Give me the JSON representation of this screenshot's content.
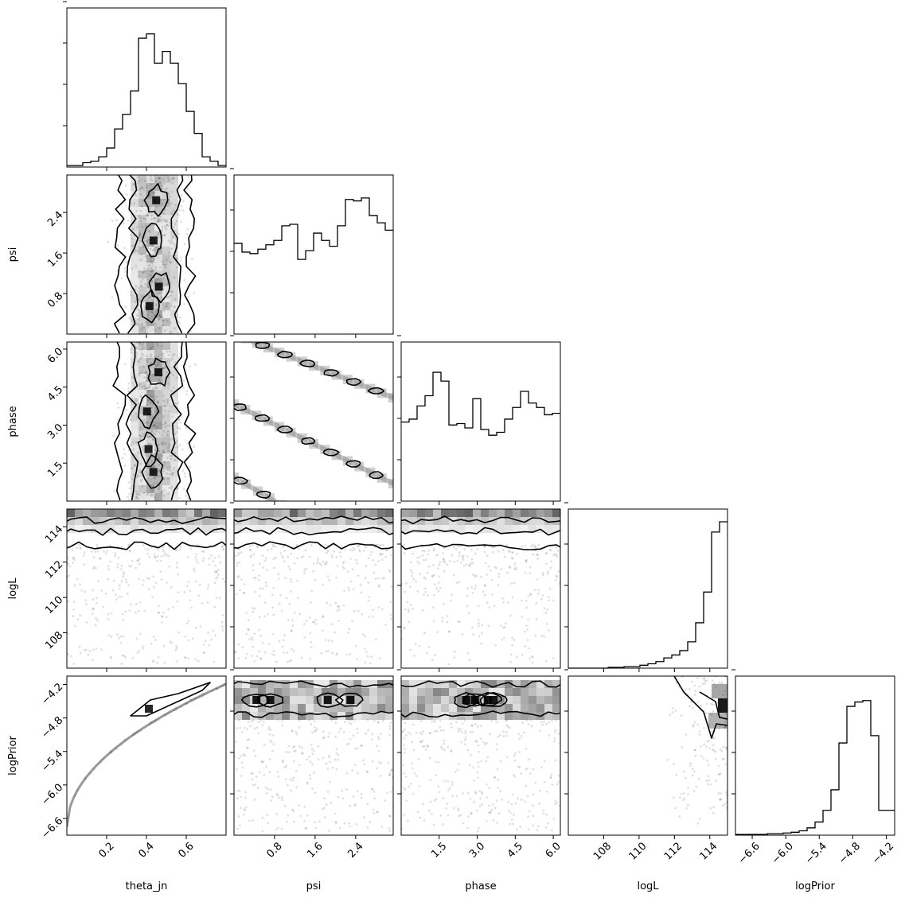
{
  "chart_data": {
    "type": "corner",
    "parameters": [
      {
        "name": "theta_jn",
        "range": [
          0.0,
          0.8
        ],
        "ticks": [
          0.2,
          0.4,
          0.6
        ],
        "tick_labels": [
          "0.2",
          "0.4",
          "0.6"
        ]
      },
      {
        "name": "psi",
        "range": [
          0.0,
          3.14
        ],
        "ticks": [
          0.8,
          1.6,
          2.4
        ],
        "tick_labels": [
          "0.8",
          "1.6",
          "2.4"
        ]
      },
      {
        "name": "phase",
        "range": [
          0.0,
          6.28
        ],
        "ticks": [
          1.5,
          3.0,
          4.5,
          6.0
        ],
        "tick_labels": [
          "1.5",
          "3.0",
          "4.5",
          "6.0"
        ]
      },
      {
        "name": "logL",
        "range": [
          106.0,
          115.0
        ],
        "ticks": [
          108,
          110,
          112,
          114
        ],
        "tick_labels": [
          "108",
          "110",
          "112",
          "114"
        ]
      },
      {
        "name": "logPrior",
        "range": [
          -6.9,
          -4.05
        ],
        "ticks": [
          -6.6,
          -6.0,
          -5.4,
          -4.8,
          -4.2
        ],
        "tick_labels": [
          "−6.6",
          "−6.0",
          "−5.4",
          "−4.8",
          "−4.2"
        ]
      }
    ],
    "histograms": [
      [
        0.01,
        0.01,
        0.03,
        0.04,
        0.07,
        0.13,
        0.26,
        0.36,
        0.52,
        0.88,
        0.91,
        0.71,
        0.79,
        0.71,
        0.57,
        0.38,
        0.23,
        0.07,
        0.04,
        0.01
      ],
      [
        0.62,
        0.56,
        0.55,
        0.58,
        0.61,
        0.64,
        0.74,
        0.75,
        0.51,
        0.57,
        0.69,
        0.64,
        0.6,
        0.74,
        0.92,
        0.91,
        0.93,
        0.81,
        0.76,
        0.71
      ],
      [
        0.54,
        0.56,
        0.65,
        0.72,
        0.88,
        0.82,
        0.52,
        0.53,
        0.5,
        0.7,
        0.49,
        0.45,
        0.47,
        0.56,
        0.64,
        0.75,
        0.67,
        0.64,
        0.59,
        0.6
      ],
      [
        0.0,
        0.0,
        0.0,
        0.0,
        0.0,
        0.005,
        0.005,
        0.01,
        0.01,
        0.02,
        0.03,
        0.045,
        0.07,
        0.09,
        0.12,
        0.18,
        0.31,
        0.52,
        0.93,
        1.0
      ],
      [
        0.005,
        0.005,
        0.005,
        0.005,
        0.01,
        0.01,
        0.015,
        0.02,
        0.03,
        0.05,
        0.09,
        0.17,
        0.31,
        0.63,
        0.88,
        0.91,
        0.92,
        0.68,
        0.17,
        0.17
      ]
    ],
    "pairs": [
      {
        "x": "theta_jn",
        "y": "psi",
        "kind": "band",
        "center": 0.44,
        "width": 0.12
      },
      {
        "x": "theta_jn",
        "y": "phase",
        "kind": "band",
        "center": 0.44,
        "width": 0.12
      },
      {
        "x": "psi",
        "y": "phase",
        "kind": "diagonal"
      },
      {
        "x": "theta_jn",
        "y": "logL",
        "kind": "top-band"
      },
      {
        "x": "psi",
        "y": "logL",
        "kind": "top-band"
      },
      {
        "x": "phase",
        "y": "logL",
        "kind": "top-band"
      },
      {
        "x": "theta_jn",
        "y": "logPrior",
        "kind": "curve"
      },
      {
        "x": "psi",
        "y": "logPrior",
        "kind": "hband"
      },
      {
        "x": "phase",
        "y": "logPrior",
        "kind": "hband"
      },
      {
        "x": "logL",
        "y": "logPrior",
        "kind": "corner-cluster"
      }
    ],
    "grid": false,
    "legend": "none"
  }
}
